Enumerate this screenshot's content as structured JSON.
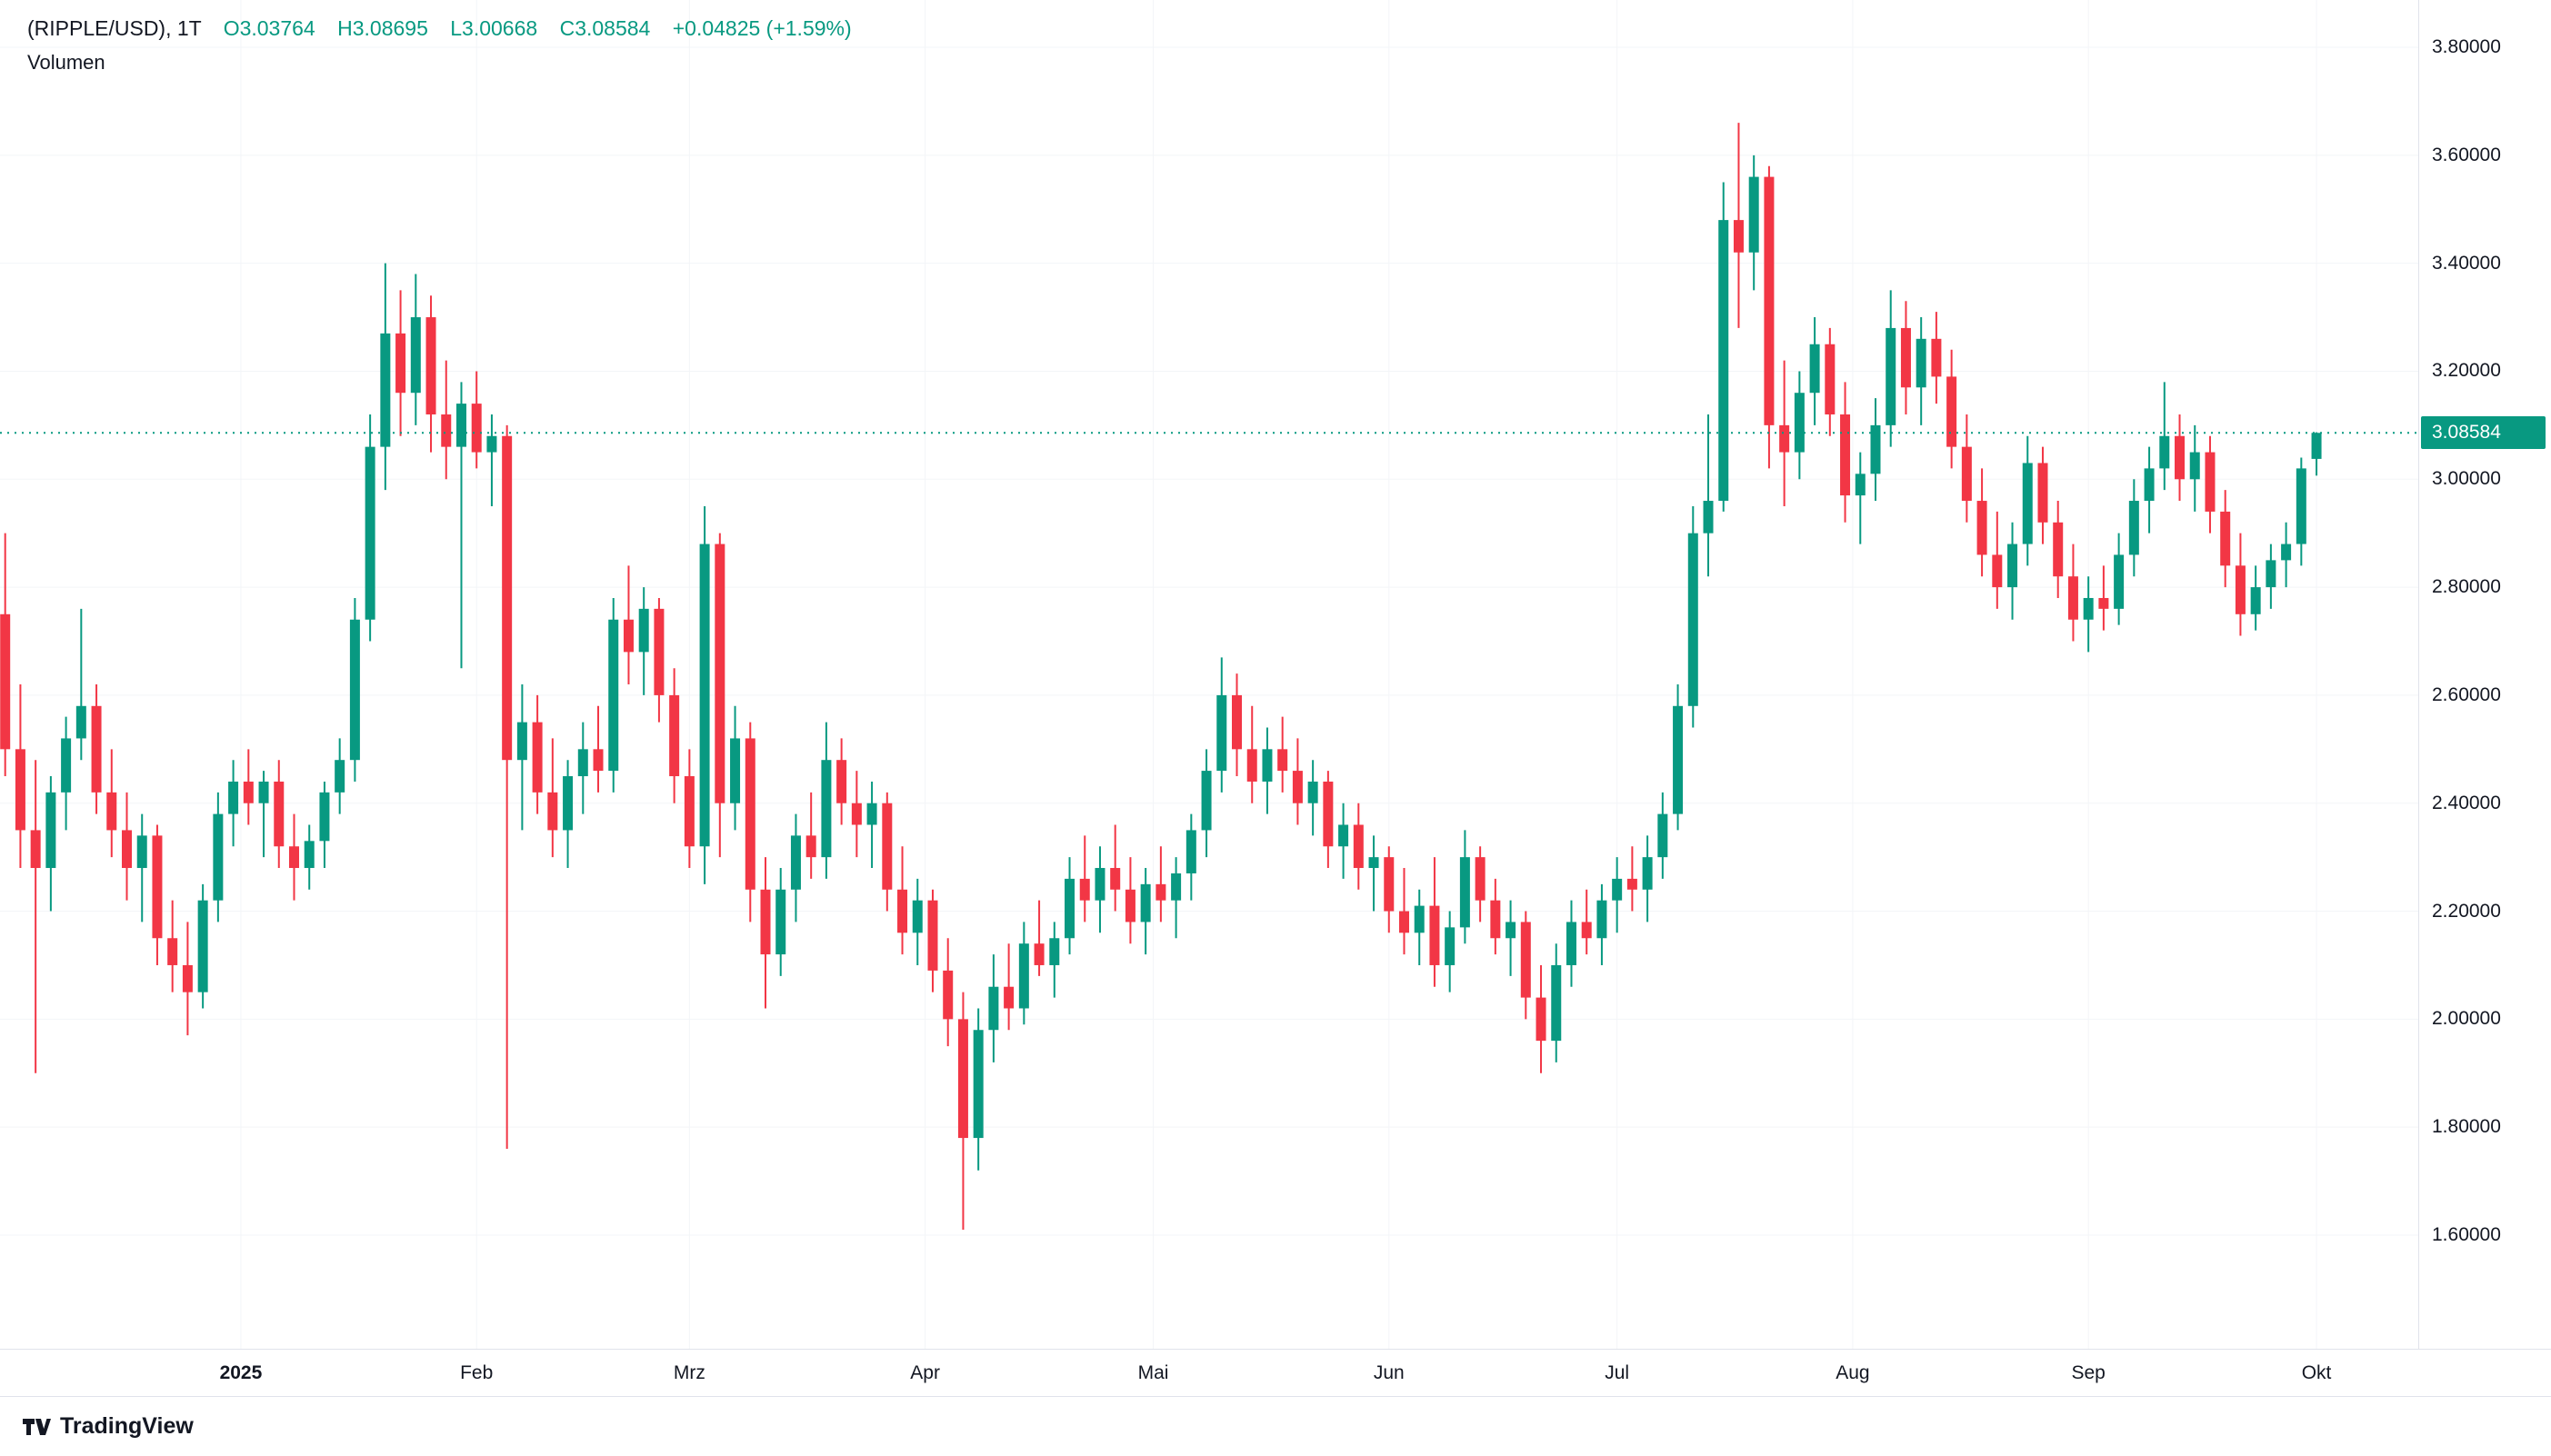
{
  "header": {
    "symbol_interval": "(RIPPLE/USD), 1T",
    "open_token": "O3.03764",
    "high_token": "H3.08695",
    "low_token": "L3.00668",
    "close_token": "C3.08584",
    "change_token": "+0.04825 (+1.59%)",
    "indicator_label": "Volumen"
  },
  "colors": {
    "up": "#089981",
    "down": "#f23645",
    "text": "#131722",
    "border": "#e0e3eb",
    "grid": "#f3f5f8",
    "current_line": "#089981"
  },
  "price_axis": {
    "labels": [
      {
        "text": "3.80000",
        "value": 3.8
      },
      {
        "text": "3.60000",
        "value": 3.6
      },
      {
        "text": "3.40000",
        "value": 3.4
      },
      {
        "text": "3.20000",
        "value": 3.2
      },
      {
        "text": "3.00000",
        "value": 3.0
      },
      {
        "text": "2.80000",
        "value": 2.8
      },
      {
        "text": "2.60000",
        "value": 2.6
      },
      {
        "text": "2.40000",
        "value": 2.4
      },
      {
        "text": "2.20000",
        "value": 2.2
      },
      {
        "text": "2.00000",
        "value": 2.0
      },
      {
        "text": "1.80000",
        "value": 1.8
      },
      {
        "text": "1.60000",
        "value": 1.6
      }
    ],
    "current": {
      "text": "3.08584",
      "value": 3.08584
    }
  },
  "time_axis": {
    "ticks": [
      {
        "label": "2025",
        "day": 31,
        "year": true
      },
      {
        "label": "Feb",
        "day": 62,
        "year": false
      },
      {
        "label": "Mrz",
        "day": 90,
        "year": false
      },
      {
        "label": "Apr",
        "day": 121,
        "year": false
      },
      {
        "label": "Mai",
        "day": 151,
        "year": false
      },
      {
        "label": "Jun",
        "day": 182,
        "year": false
      },
      {
        "label": "Jul",
        "day": 212,
        "year": false
      },
      {
        "label": "Aug",
        "day": 243,
        "year": false
      },
      {
        "label": "Sep",
        "day": 274,
        "year": false
      },
      {
        "label": "Okt",
        "day": 304,
        "year": false
      }
    ]
  },
  "chart_data": {
    "type": "candlestick",
    "title": "(RIPPLE/USD), 1T",
    "symbol": "RIPPLE/USD",
    "interval": "1T",
    "current_ohlc": {
      "o": 3.03764,
      "h": 3.08695,
      "l": 3.00668,
      "c": 3.08584
    },
    "change_abs": 0.04825,
    "change_pct": 1.59,
    "current_price": 3.08584,
    "y_range": [
      1.6,
      3.8
    ],
    "x_unit": "day index of visible range (Dez 2024 - Okt 2025)",
    "grid": "off",
    "legend_position": "top-left",
    "candles_format": [
      "day",
      "open",
      "high",
      "low",
      "close"
    ],
    "candles": [
      [
        0,
        2.75,
        2.9,
        2.45,
        2.5
      ],
      [
        2,
        2.5,
        2.62,
        2.28,
        2.35
      ],
      [
        4,
        2.35,
        2.48,
        1.9,
        2.28
      ],
      [
        6,
        2.28,
        2.45,
        2.2,
        2.42
      ],
      [
        8,
        2.42,
        2.56,
        2.35,
        2.52
      ],
      [
        10,
        2.52,
        2.76,
        2.48,
        2.58
      ],
      [
        12,
        2.58,
        2.62,
        2.38,
        2.42
      ],
      [
        14,
        2.42,
        2.5,
        2.3,
        2.35
      ],
      [
        16,
        2.35,
        2.42,
        2.22,
        2.28
      ],
      [
        18,
        2.28,
        2.38,
        2.18,
        2.34
      ],
      [
        20,
        2.34,
        2.36,
        2.1,
        2.15
      ],
      [
        22,
        2.15,
        2.22,
        2.05,
        2.1
      ],
      [
        24,
        2.1,
        2.18,
        1.97,
        2.05
      ],
      [
        26,
        2.05,
        2.25,
        2.02,
        2.22
      ],
      [
        28,
        2.22,
        2.42,
        2.18,
        2.38
      ],
      [
        30,
        2.38,
        2.48,
        2.32,
        2.44
      ],
      [
        32,
        2.44,
        2.5,
        2.36,
        2.4
      ],
      [
        34,
        2.4,
        2.46,
        2.3,
        2.44
      ],
      [
        36,
        2.44,
        2.48,
        2.28,
        2.32
      ],
      [
        38,
        2.32,
        2.38,
        2.22,
        2.28
      ],
      [
        40,
        2.28,
        2.36,
        2.24,
        2.33
      ],
      [
        42,
        2.33,
        2.44,
        2.28,
        2.42
      ],
      [
        44,
        2.42,
        2.52,
        2.38,
        2.48
      ],
      [
        46,
        2.48,
        2.78,
        2.44,
        2.74
      ],
      [
        48,
        2.74,
        3.12,
        2.7,
        3.06
      ],
      [
        50,
        3.06,
        3.4,
        2.98,
        3.27
      ],
      [
        52,
        3.27,
        3.35,
        3.08,
        3.16
      ],
      [
        54,
        3.16,
        3.38,
        3.1,
        3.3
      ],
      [
        56,
        3.3,
        3.34,
        3.05,
        3.12
      ],
      [
        58,
        3.12,
        3.22,
        3.0,
        3.06
      ],
      [
        60,
        3.06,
        3.18,
        2.65,
        3.14
      ],
      [
        62,
        3.14,
        3.2,
        3.02,
        3.05
      ],
      [
        64,
        3.05,
        3.12,
        2.95,
        3.08
      ],
      [
        66,
        3.08,
        3.1,
        1.76,
        2.48
      ],
      [
        68,
        2.48,
        2.62,
        2.35,
        2.55
      ],
      [
        70,
        2.55,
        2.6,
        2.38,
        2.42
      ],
      [
        72,
        2.42,
        2.52,
        2.3,
        2.35
      ],
      [
        74,
        2.35,
        2.48,
        2.28,
        2.45
      ],
      [
        76,
        2.45,
        2.55,
        2.38,
        2.5
      ],
      [
        78,
        2.5,
        2.58,
        2.42,
        2.46
      ],
      [
        80,
        2.46,
        2.78,
        2.42,
        2.74
      ],
      [
        82,
        2.74,
        2.84,
        2.62,
        2.68
      ],
      [
        84,
        2.68,
        2.8,
        2.6,
        2.76
      ],
      [
        86,
        2.76,
        2.78,
        2.55,
        2.6
      ],
      [
        88,
        2.6,
        2.65,
        2.4,
        2.45
      ],
      [
        90,
        2.45,
        2.5,
        2.28,
        2.32
      ],
      [
        92,
        2.32,
        2.95,
        2.25,
        2.88
      ],
      [
        94,
        2.88,
        2.9,
        2.3,
        2.4
      ],
      [
        96,
        2.4,
        2.58,
        2.35,
        2.52
      ],
      [
        98,
        2.52,
        2.55,
        2.18,
        2.24
      ],
      [
        100,
        2.24,
        2.3,
        2.02,
        2.12
      ],
      [
        102,
        2.12,
        2.28,
        2.08,
        2.24
      ],
      [
        104,
        2.24,
        2.38,
        2.18,
        2.34
      ],
      [
        106,
        2.34,
        2.42,
        2.26,
        2.3
      ],
      [
        108,
        2.3,
        2.55,
        2.26,
        2.48
      ],
      [
        110,
        2.48,
        2.52,
        2.36,
        2.4
      ],
      [
        112,
        2.4,
        2.46,
        2.3,
        2.36
      ],
      [
        114,
        2.36,
        2.44,
        2.28,
        2.4
      ],
      [
        116,
        2.4,
        2.42,
        2.2,
        2.24
      ],
      [
        118,
        2.24,
        2.32,
        2.12,
        2.16
      ],
      [
        120,
        2.16,
        2.26,
        2.1,
        2.22
      ],
      [
        122,
        2.22,
        2.24,
        2.05,
        2.09
      ],
      [
        124,
        2.09,
        2.15,
        1.95,
        2.0
      ],
      [
        126,
        2.0,
        2.05,
        1.61,
        1.78
      ],
      [
        128,
        1.78,
        2.02,
        1.72,
        1.98
      ],
      [
        130,
        1.98,
        2.12,
        1.92,
        2.06
      ],
      [
        132,
        2.06,
        2.14,
        1.98,
        2.02
      ],
      [
        134,
        2.02,
        2.18,
        1.99,
        2.14
      ],
      [
        136,
        2.14,
        2.22,
        2.08,
        2.1
      ],
      [
        138,
        2.1,
        2.18,
        2.04,
        2.15
      ],
      [
        140,
        2.15,
        2.3,
        2.12,
        2.26
      ],
      [
        142,
        2.26,
        2.34,
        2.18,
        2.22
      ],
      [
        144,
        2.22,
        2.32,
        2.16,
        2.28
      ],
      [
        146,
        2.28,
        2.36,
        2.2,
        2.24
      ],
      [
        148,
        2.24,
        2.3,
        2.14,
        2.18
      ],
      [
        150,
        2.18,
        2.28,
        2.12,
        2.25
      ],
      [
        152,
        2.25,
        2.32,
        2.18,
        2.22
      ],
      [
        154,
        2.22,
        2.3,
        2.15,
        2.27
      ],
      [
        156,
        2.27,
        2.38,
        2.22,
        2.35
      ],
      [
        158,
        2.35,
        2.5,
        2.3,
        2.46
      ],
      [
        160,
        2.46,
        2.67,
        2.42,
        2.6
      ],
      [
        162,
        2.6,
        2.64,
        2.45,
        2.5
      ],
      [
        164,
        2.5,
        2.58,
        2.4,
        2.44
      ],
      [
        166,
        2.44,
        2.54,
        2.38,
        2.5
      ],
      [
        168,
        2.5,
        2.56,
        2.42,
        2.46
      ],
      [
        170,
        2.46,
        2.52,
        2.36,
        2.4
      ],
      [
        172,
        2.4,
        2.48,
        2.34,
        2.44
      ],
      [
        174,
        2.44,
        2.46,
        2.28,
        2.32
      ],
      [
        176,
        2.32,
        2.4,
        2.26,
        2.36
      ],
      [
        178,
        2.36,
        2.4,
        2.24,
        2.28
      ],
      [
        180,
        2.28,
        2.34,
        2.2,
        2.3
      ],
      [
        182,
        2.3,
        2.32,
        2.16,
        2.2
      ],
      [
        184,
        2.2,
        2.28,
        2.12,
        2.16
      ],
      [
        186,
        2.16,
        2.24,
        2.1,
        2.21
      ],
      [
        188,
        2.21,
        2.3,
        2.06,
        2.1
      ],
      [
        190,
        2.1,
        2.2,
        2.05,
        2.17
      ],
      [
        192,
        2.17,
        2.35,
        2.14,
        2.3
      ],
      [
        194,
        2.3,
        2.32,
        2.18,
        2.22
      ],
      [
        196,
        2.22,
        2.26,
        2.12,
        2.15
      ],
      [
        198,
        2.15,
        2.22,
        2.08,
        2.18
      ],
      [
        200,
        2.18,
        2.2,
        2.0,
        2.04
      ],
      [
        202,
        2.04,
        2.1,
        1.9,
        1.96
      ],
      [
        204,
        1.96,
        2.14,
        1.92,
        2.1
      ],
      [
        206,
        2.1,
        2.22,
        2.06,
        2.18
      ],
      [
        208,
        2.18,
        2.24,
        2.12,
        2.15
      ],
      [
        210,
        2.15,
        2.25,
        2.1,
        2.22
      ],
      [
        212,
        2.22,
        2.3,
        2.16,
        2.26
      ],
      [
        214,
        2.26,
        2.32,
        2.2,
        2.24
      ],
      [
        216,
        2.24,
        2.34,
        2.18,
        2.3
      ],
      [
        218,
        2.3,
        2.42,
        2.26,
        2.38
      ],
      [
        220,
        2.38,
        2.62,
        2.35,
        2.58
      ],
      [
        222,
        2.58,
        2.95,
        2.54,
        2.9
      ],
      [
        224,
        2.9,
        3.12,
        2.82,
        2.96
      ],
      [
        226,
        2.96,
        3.55,
        2.94,
        3.48
      ],
      [
        228,
        3.48,
        3.66,
        3.28,
        3.42
      ],
      [
        230,
        3.42,
        3.6,
        3.35,
        3.56
      ],
      [
        232,
        3.56,
        3.58,
        3.02,
        3.1
      ],
      [
        234,
        3.1,
        3.22,
        2.95,
        3.05
      ],
      [
        236,
        3.05,
        3.2,
        3.0,
        3.16
      ],
      [
        238,
        3.16,
        3.3,
        3.1,
        3.25
      ],
      [
        240,
        3.25,
        3.28,
        3.08,
        3.12
      ],
      [
        242,
        3.12,
        3.18,
        2.92,
        2.97
      ],
      [
        244,
        2.97,
        3.05,
        2.88,
        3.01
      ],
      [
        246,
        3.01,
        3.15,
        2.96,
        3.1
      ],
      [
        248,
        3.1,
        3.35,
        3.06,
        3.28
      ],
      [
        250,
        3.28,
        3.33,
        3.12,
        3.17
      ],
      [
        252,
        3.17,
        3.3,
        3.1,
        3.26
      ],
      [
        254,
        3.26,
        3.31,
        3.14,
        3.19
      ],
      [
        256,
        3.19,
        3.24,
        3.02,
        3.06
      ],
      [
        258,
        3.06,
        3.12,
        2.92,
        2.96
      ],
      [
        260,
        2.96,
        3.02,
        2.82,
        2.86
      ],
      [
        262,
        2.86,
        2.94,
        2.76,
        2.8
      ],
      [
        264,
        2.8,
        2.92,
        2.74,
        2.88
      ],
      [
        266,
        2.88,
        3.08,
        2.84,
        3.03
      ],
      [
        268,
        3.03,
        3.06,
        2.88,
        2.92
      ],
      [
        270,
        2.92,
        2.96,
        2.78,
        2.82
      ],
      [
        272,
        2.82,
        2.88,
        2.7,
        2.74
      ],
      [
        274,
        2.74,
        2.82,
        2.68,
        2.78
      ],
      [
        276,
        2.78,
        2.84,
        2.72,
        2.76
      ],
      [
        278,
        2.76,
        2.9,
        2.73,
        2.86
      ],
      [
        280,
        2.86,
        3.0,
        2.82,
        2.96
      ],
      [
        282,
        2.96,
        3.06,
        2.9,
        3.02
      ],
      [
        284,
        3.02,
        3.18,
        2.98,
        3.08
      ],
      [
        286,
        3.08,
        3.12,
        2.96,
        3.0
      ],
      [
        288,
        3.0,
        3.1,
        2.94,
        3.05
      ],
      [
        290,
        3.05,
        3.08,
        2.9,
        2.94
      ],
      [
        292,
        2.94,
        2.98,
        2.8,
        2.84
      ],
      [
        294,
        2.84,
        2.9,
        2.71,
        2.75
      ],
      [
        296,
        2.75,
        2.84,
        2.72,
        2.8
      ],
      [
        298,
        2.8,
        2.88,
        2.76,
        2.85
      ],
      [
        300,
        2.85,
        2.92,
        2.8,
        2.88
      ],
      [
        302,
        2.88,
        3.04,
        2.84,
        3.02
      ],
      [
        304,
        3.03764,
        3.08695,
        3.00668,
        3.08584
      ]
    ]
  },
  "branding": {
    "logo_text": "TradingView"
  }
}
